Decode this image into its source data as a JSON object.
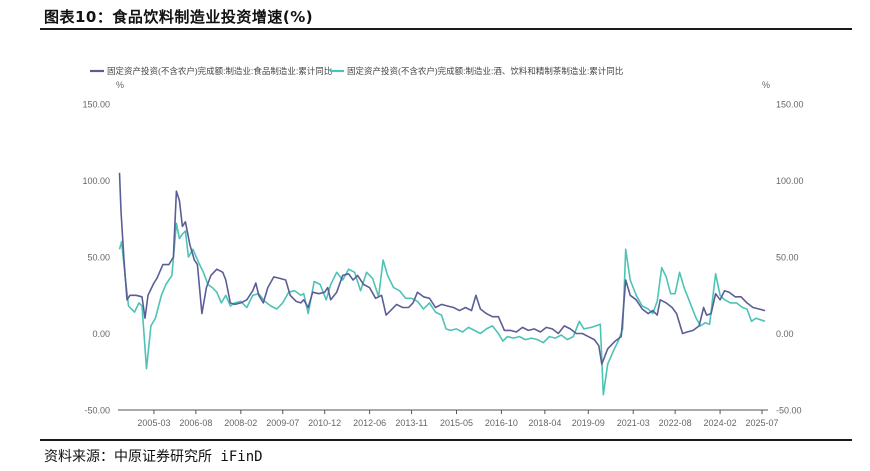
{
  "figure_title": "图表10：食品饮料制造业投资增速(%)",
  "source": "资料来源：中原证券研究所 iFinD",
  "colors": {
    "series_food": "#5b5e96",
    "series_beverage": "#4ec3b5",
    "axis": "#555555",
    "tick_text": "#666666"
  },
  "chart_data": {
    "type": "line",
    "left_unit": "%",
    "right_unit": "%",
    "ylim": [
      -50,
      150
    ],
    "yticks": [
      -50,
      0,
      50,
      100,
      150
    ],
    "ytick_labels": [
      "-50.00",
      "0.00",
      "50.00",
      "100.00",
      "150.00"
    ],
    "xlim": [
      2004.0,
      2025.7
    ],
    "xticks": [
      2005.2,
      2006.6,
      2008.1,
      2009.5,
      2010.9,
      2012.4,
      2013.8,
      2015.3,
      2016.8,
      2018.25,
      2019.7,
      2021.2,
      2022.6,
      2024.1,
      2025.5
    ],
    "xtick_labels": [
      "2005-03",
      "2006-08",
      "2008-02",
      "2009-07",
      "2010-12",
      "2012-06",
      "2013-11",
      "2015-05",
      "2016-10",
      "2018-04",
      "2019-09",
      "2021-03",
      "2022-08",
      "2024-02",
      "2025-07"
    ],
    "legend_position": "top-left",
    "grid": false,
    "series": [
      {
        "name": "固定资产投资(不含农户)完成额:制造业:食品制造业:累计同比",
        "axis": "left",
        "points": [
          [
            2004.05,
            105
          ],
          [
            2004.1,
            80
          ],
          [
            2004.2,
            48
          ],
          [
            2004.3,
            22
          ],
          [
            2004.4,
            25
          ],
          [
            2004.6,
            25
          ],
          [
            2004.8,
            24
          ],
          [
            2004.9,
            10
          ],
          [
            2005.0,
            25
          ],
          [
            2005.2,
            33
          ],
          [
            2005.3,
            36
          ],
          [
            2005.5,
            45
          ],
          [
            2005.7,
            45
          ],
          [
            2005.85,
            50
          ],
          [
            2005.95,
            93
          ],
          [
            2006.05,
            87
          ],
          [
            2006.15,
            70
          ],
          [
            2006.25,
            73
          ],
          [
            2006.4,
            58
          ],
          [
            2006.55,
            48
          ],
          [
            2006.65,
            45
          ],
          [
            2006.8,
            13
          ],
          [
            2006.95,
            30
          ],
          [
            2007.1,
            38
          ],
          [
            2007.3,
            42
          ],
          [
            2007.5,
            40
          ],
          [
            2007.6,
            35
          ],
          [
            2007.75,
            20
          ],
          [
            2007.9,
            19
          ],
          [
            2008.1,
            20
          ],
          [
            2008.3,
            22
          ],
          [
            2008.5,
            28
          ],
          [
            2008.6,
            33
          ],
          [
            2008.7,
            25
          ],
          [
            2008.85,
            20
          ],
          [
            2009.0,
            30
          ],
          [
            2009.2,
            37
          ],
          [
            2009.4,
            36
          ],
          [
            2009.6,
            35
          ],
          [
            2009.75,
            25
          ],
          [
            2009.95,
            21
          ],
          [
            2010.1,
            20
          ],
          [
            2010.2,
            22
          ],
          [
            2010.35,
            17
          ],
          [
            2010.5,
            27
          ],
          [
            2010.7,
            26
          ],
          [
            2010.9,
            27
          ],
          [
            2011.0,
            30
          ],
          [
            2011.1,
            22
          ],
          [
            2011.3,
            27
          ],
          [
            2011.5,
            38
          ],
          [
            2011.7,
            39
          ],
          [
            2011.85,
            35
          ],
          [
            2012.0,
            38
          ],
          [
            2012.2,
            32
          ],
          [
            2012.4,
            30
          ],
          [
            2012.6,
            23
          ],
          [
            2012.8,
            25
          ],
          [
            2012.95,
            12
          ],
          [
            2013.1,
            15
          ],
          [
            2013.3,
            19
          ],
          [
            2013.5,
            17
          ],
          [
            2013.7,
            17
          ],
          [
            2013.85,
            20
          ],
          [
            2014.0,
            27
          ],
          [
            2014.2,
            24
          ],
          [
            2014.4,
            23
          ],
          [
            2014.6,
            17
          ],
          [
            2014.8,
            19
          ],
          [
            2015.0,
            18
          ],
          [
            2015.2,
            17
          ],
          [
            2015.4,
            15
          ],
          [
            2015.6,
            17
          ],
          [
            2015.8,
            15
          ],
          [
            2015.95,
            25
          ],
          [
            2016.1,
            16
          ],
          [
            2016.3,
            13
          ],
          [
            2016.5,
            11
          ],
          [
            2016.7,
            11
          ],
          [
            2016.9,
            2
          ],
          [
            2017.1,
            2
          ],
          [
            2017.3,
            1
          ],
          [
            2017.5,
            4
          ],
          [
            2017.7,
            2
          ],
          [
            2017.9,
            3
          ],
          [
            2018.1,
            1
          ],
          [
            2018.3,
            4
          ],
          [
            2018.5,
            3
          ],
          [
            2018.7,
            0
          ],
          [
            2018.9,
            5
          ],
          [
            2019.1,
            3
          ],
          [
            2019.3,
            0
          ],
          [
            2019.5,
            0
          ],
          [
            2019.7,
            -2
          ],
          [
            2019.9,
            -4
          ],
          [
            2020.05,
            -8
          ],
          [
            2020.15,
            -20
          ],
          [
            2020.35,
            -10
          ],
          [
            2020.6,
            -5
          ],
          [
            2020.8,
            -2
          ],
          [
            2020.95,
            35
          ],
          [
            2021.1,
            25
          ],
          [
            2021.3,
            22
          ],
          [
            2021.5,
            16
          ],
          [
            2021.7,
            13
          ],
          [
            2021.85,
            15
          ],
          [
            2022.0,
            12
          ],
          [
            2022.1,
            22
          ],
          [
            2022.3,
            20
          ],
          [
            2022.5,
            17
          ],
          [
            2022.65,
            13
          ],
          [
            2022.85,
            0
          ],
          [
            2023.0,
            1
          ],
          [
            2023.2,
            2
          ],
          [
            2023.4,
            5
          ],
          [
            2023.55,
            17
          ],
          [
            2023.65,
            12
          ],
          [
            2023.8,
            13
          ],
          [
            2023.95,
            26
          ],
          [
            2024.1,
            22
          ],
          [
            2024.25,
            28
          ],
          [
            2024.4,
            27
          ],
          [
            2024.6,
            24
          ],
          [
            2024.8,
            24
          ],
          [
            2025.0,
            20
          ],
          [
            2025.2,
            17
          ],
          [
            2025.4,
            16
          ],
          [
            2025.6,
            15
          ]
        ]
      },
      {
        "name": "固定资产投资(不含农户)完成额:制造业:酒、饮料和精制茶制造业:累计同比",
        "axis": "left",
        "points": [
          [
            2004.05,
            55
          ],
          [
            2004.12,
            60
          ],
          [
            2004.25,
            35
          ],
          [
            2004.35,
            18
          ],
          [
            2004.55,
            14
          ],
          [
            2004.7,
            20
          ],
          [
            2004.8,
            18
          ],
          [
            2004.95,
            -23
          ],
          [
            2005.1,
            5
          ],
          [
            2005.25,
            10
          ],
          [
            2005.45,
            25
          ],
          [
            2005.6,
            32
          ],
          [
            2005.8,
            38
          ],
          [
            2005.95,
            72
          ],
          [
            2006.05,
            62
          ],
          [
            2006.15,
            65
          ],
          [
            2006.25,
            67
          ],
          [
            2006.35,
            50
          ],
          [
            2006.5,
            55
          ],
          [
            2006.7,
            46
          ],
          [
            2006.85,
            40
          ],
          [
            2007.0,
            32
          ],
          [
            2007.15,
            30
          ],
          [
            2007.3,
            27
          ],
          [
            2007.45,
            20
          ],
          [
            2007.6,
            25
          ],
          [
            2007.75,
            18
          ],
          [
            2007.9,
            20
          ],
          [
            2008.1,
            21
          ],
          [
            2008.3,
            17
          ],
          [
            2008.5,
            25
          ],
          [
            2008.7,
            26
          ],
          [
            2008.9,
            21
          ],
          [
            2009.1,
            18
          ],
          [
            2009.3,
            16
          ],
          [
            2009.5,
            20
          ],
          [
            2009.7,
            27
          ],
          [
            2009.9,
            28
          ],
          [
            2010.1,
            25
          ],
          [
            2010.2,
            26
          ],
          [
            2010.35,
            13
          ],
          [
            2010.55,
            34
          ],
          [
            2010.75,
            32
          ],
          [
            2010.95,
            22
          ],
          [
            2011.1,
            32
          ],
          [
            2011.3,
            40
          ],
          [
            2011.5,
            35
          ],
          [
            2011.7,
            42
          ],
          [
            2011.9,
            40
          ],
          [
            2012.1,
            28
          ],
          [
            2012.3,
            40
          ],
          [
            2012.5,
            36
          ],
          [
            2012.7,
            24
          ],
          [
            2012.85,
            48
          ],
          [
            2013.0,
            38
          ],
          [
            2013.2,
            30
          ],
          [
            2013.4,
            28
          ],
          [
            2013.6,
            23
          ],
          [
            2013.8,
            23
          ],
          [
            2014.0,
            21
          ],
          [
            2014.2,
            16
          ],
          [
            2014.4,
            20
          ],
          [
            2014.6,
            14
          ],
          [
            2014.8,
            12
          ],
          [
            2014.95,
            3
          ],
          [
            2015.1,
            2
          ],
          [
            2015.3,
            3
          ],
          [
            2015.5,
            1
          ],
          [
            2015.7,
            4
          ],
          [
            2015.9,
            2
          ],
          [
            2016.1,
            0
          ],
          [
            2016.3,
            3
          ],
          [
            2016.5,
            5
          ],
          [
            2016.7,
            0
          ],
          [
            2016.85,
            -5
          ],
          [
            2017.0,
            -2
          ],
          [
            2017.2,
            -3
          ],
          [
            2017.4,
            -2
          ],
          [
            2017.6,
            -4
          ],
          [
            2017.8,
            -3
          ],
          [
            2018.0,
            -4
          ],
          [
            2018.2,
            -6
          ],
          [
            2018.4,
            -2
          ],
          [
            2018.6,
            -3
          ],
          [
            2018.8,
            -1
          ],
          [
            2019.0,
            -4
          ],
          [
            2019.2,
            -2
          ],
          [
            2019.4,
            8
          ],
          [
            2019.55,
            3
          ],
          [
            2019.8,
            4
          ],
          [
            2019.95,
            5
          ],
          [
            2020.1,
            6
          ],
          [
            2020.2,
            -40
          ],
          [
            2020.35,
            -20
          ],
          [
            2020.55,
            -11
          ],
          [
            2020.7,
            -5
          ],
          [
            2020.85,
            3
          ],
          [
            2020.95,
            55
          ],
          [
            2021.1,
            35
          ],
          [
            2021.3,
            25
          ],
          [
            2021.5,
            18
          ],
          [
            2021.7,
            16
          ],
          [
            2021.85,
            13
          ],
          [
            2022.0,
            21
          ],
          [
            2022.15,
            43
          ],
          [
            2022.3,
            37
          ],
          [
            2022.45,
            26
          ],
          [
            2022.6,
            26
          ],
          [
            2022.75,
            40
          ],
          [
            2022.9,
            30
          ],
          [
            2023.1,
            20
          ],
          [
            2023.3,
            10
          ],
          [
            2023.45,
            5
          ],
          [
            2023.6,
            7
          ],
          [
            2023.75,
            6
          ],
          [
            2023.95,
            39
          ],
          [
            2024.1,
            25
          ],
          [
            2024.25,
            22
          ],
          [
            2024.45,
            20
          ],
          [
            2024.65,
            20
          ],
          [
            2024.85,
            17
          ],
          [
            2025.0,
            16
          ],
          [
            2025.15,
            8
          ],
          [
            2025.3,
            10
          ],
          [
            2025.6,
            8
          ]
        ]
      }
    ]
  }
}
